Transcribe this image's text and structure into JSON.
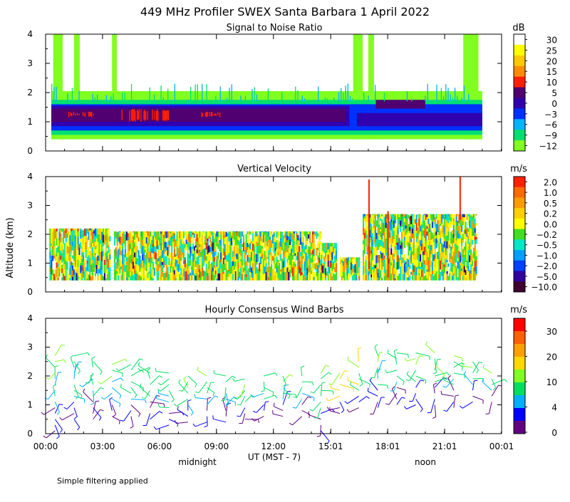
{
  "title": "449 MHz Profiler SWEX Santa Barbara   1 April 2022",
  "footer_note": "Simple filtering applied",
  "ylabel": "Altitude (km)",
  "x_axis": {
    "tick_labels": [
      "00:00",
      "03:00",
      "06:00",
      "09:00",
      "12:00",
      "15:01",
      "18:01",
      "21:01",
      "00:01"
    ],
    "tick_hours": [
      0,
      3,
      6,
      9,
      12,
      15.02,
      18.02,
      21.02,
      24.02
    ],
    "label": "UT  (MST - 7)",
    "midnight_label": "midnight",
    "noon_label": "noon",
    "range_hours": [
      0,
      24.02
    ]
  },
  "chart_data": [
    {
      "type": "heatmap",
      "title": "Signal to Noise Ratio",
      "ylabel": "Altitude (km)",
      "ylim": [
        0,
        4
      ],
      "y_ticks": [
        "0",
        "1",
        "2",
        "3",
        "4"
      ],
      "colorbar": {
        "unit": "dB",
        "labels": [
          "30",
          "25",
          "20",
          "15",
          "10",
          "5",
          "0",
          "−3",
          "−6",
          "−9",
          "−12"
        ],
        "colors": [
          "#ffffff",
          "#ffff00",
          "#ffc800",
          "#ff8c00",
          "#ff2000",
          "#500070",
          "#3000b0",
          "#0030ff",
          "#00b4ff",
          "#00e070",
          "#80ff20"
        ]
      },
      "layers": [
        {
          "name": "noise floor",
          "start": 0.3,
          "end": 23.0,
          "bottom": 0.4,
          "top": 2.05,
          "color": "#80ff20"
        },
        {
          "name": "low snr",
          "start": 0.3,
          "end": 23.0,
          "bottom": 0.55,
          "top": 1.75,
          "color": "#00e070"
        },
        {
          "name": "moderate snr",
          "start": 0.3,
          "end": 23.0,
          "bottom": 0.7,
          "top": 1.6,
          "color": "#0030ff"
        },
        {
          "name": "strong layer",
          "start": 0.3,
          "end": 16.0,
          "bottom": 0.85,
          "top": 1.55,
          "color": "#3000b0"
        },
        {
          "name": "strong layer upper",
          "start": 16.4,
          "end": 23.0,
          "bottom": 0.85,
          "top": 1.3,
          "color": "#3000b0"
        },
        {
          "name": "very strong core",
          "start": 0.3,
          "end": 15.8,
          "bottom": 1.0,
          "top": 1.45,
          "color": "#500070"
        },
        {
          "name": "upper strong",
          "start": 17.4,
          "end": 20.0,
          "bottom": 1.45,
          "top": 1.75,
          "color": "#500070"
        }
      ],
      "peaks": [
        {
          "start": 1.2,
          "end": 2.5,
          "bottom": 1.15,
          "top": 1.35
        },
        {
          "start": 4.0,
          "end": 6.5,
          "bottom": 1.0,
          "top": 1.45
        },
        {
          "start": 8.2,
          "end": 9.2,
          "bottom": 1.15,
          "top": 1.35
        }
      ],
      "tall_echoes": [
        {
          "start": 0.4,
          "end": 0.9
        },
        {
          "start": 1.5,
          "end": 1.8
        },
        {
          "start": 3.5,
          "end": 3.75
        },
        {
          "start": 16.2,
          "end": 16.7
        },
        {
          "start": 17.0,
          "end": 17.3
        },
        {
          "start": 22.0,
          "end": 22.8
        }
      ]
    },
    {
      "type": "heatmap",
      "title": "Vertical Velocity",
      "ylabel": "Altitude (km)",
      "ylim": [
        0,
        4
      ],
      "y_ticks": [
        "0",
        "1",
        "2",
        "3",
        "4"
      ],
      "colorbar": {
        "unit": "m/s",
        "labels": [
          "2.0",
          "1.0",
          "0.5",
          "0.2",
          "0.0",
          "−0.2",
          "−0.5",
          "−1.0",
          "−2.0",
          "−5.0",
          "−10.0"
        ],
        "colors": [
          "#ff2000",
          "#ff6a00",
          "#ff9a00",
          "#ffd000",
          "#ffff00",
          "#40e020",
          "#00e8c8",
          "#00a0ff",
          "#0040ff",
          "#3000a0",
          "#400030"
        ]
      },
      "segments": [
        {
          "start": 0.2,
          "end": 3.4,
          "top": 2.2
        },
        {
          "start": 3.6,
          "end": 14.5,
          "top": 2.1
        },
        {
          "start": 14.5,
          "end": 15.3,
          "top": 1.7
        },
        {
          "start": 15.5,
          "end": 16.5,
          "top": 1.2
        },
        {
          "start": 16.7,
          "end": 22.7,
          "top": 2.7
        }
      ]
    },
    {
      "type": "scatter",
      "title": "Hourly Consensus Wind Barbs",
      "ylabel": "Altitude (km)",
      "ylim": [
        0,
        4
      ],
      "y_ticks": [
        "0",
        "1",
        "2",
        "3",
        "4"
      ],
      "colorbar": {
        "unit": "m/s",
        "labels": [
          "30",
          "20",
          "10",
          "4",
          "0"
        ],
        "colors": [
          "#ff0000",
          "#ff6000",
          "#ffa000",
          "#ffd800",
          "#80ff20",
          "#00e060",
          "#00b0ff",
          "#0000ff",
          "#600080"
        ]
      },
      "hours": [
        0,
        1,
        2,
        3,
        4,
        5,
        6,
        7,
        8,
        9,
        10,
        11,
        12,
        13,
        14,
        15,
        16,
        17,
        18,
        19,
        20,
        21,
        22,
        23
      ],
      "tops": [
        2.9,
        2.9,
        2.6,
        2.5,
        2.4,
        2.4,
        2.1,
        2.0,
        2.0,
        2.0,
        2.0,
        2.0,
        2.0,
        2.0,
        2.2,
        2.2,
        2.6,
        2.9,
        2.9,
        3.0,
        2.9,
        2.9,
        2.7,
        2.3
      ],
      "bottoms": [
        0.0,
        0.4,
        0.4,
        0.5,
        0.5,
        0.4,
        0.2,
        0.3,
        0.3,
        0.3,
        0.4,
        0.5,
        0.5,
        0.5,
        0.0,
        0.6,
        0.8,
        0.8,
        0.9,
        0.9,
        0.9,
        0.8,
        1.0,
        1.0
      ]
    }
  ]
}
